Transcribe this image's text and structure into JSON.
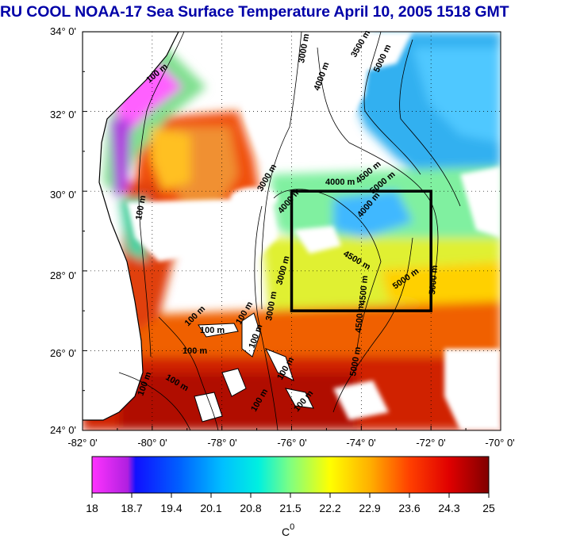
{
  "title": "RU COOL  NOAA-17 Sea Surface Temperature April 10, 2005 1518 GMT",
  "map": {
    "lat_labels": [
      "34° 0'",
      "32° 0'",
      "30° 0'",
      "28° 0'",
      "26° 0'",
      "24° 0'"
    ],
    "lon_labels": [
      "-82° 0'",
      "-80° 0'",
      "-78° 0'",
      "-76° 0'",
      "-74° 0'",
      "-72° 0'",
      "-70° 0'"
    ],
    "lat_range": [
      24,
      34
    ],
    "lon_range": [
      -82,
      -70
    ],
    "study_box": {
      "lon": [
        -76,
        -72
      ],
      "lat": [
        27,
        30
      ]
    },
    "contour_labels": [
      "3000 m",
      "3500 m",
      "5000 m",
      "4000 m",
      "100 m",
      "100 m",
      "3000 m",
      "4000 m",
      "4500 m",
      "5000 m",
      "4000 m",
      "4000 m",
      "4500 m",
      "5000 m",
      "5000 m",
      "4500 m",
      "4500 m",
      "5000 m",
      "3000 m",
      "3000 m",
      "100 m",
      "100 m",
      "100 m",
      "100 m",
      "100 m",
      "100 m",
      "100 m",
      "100 m",
      "100 m",
      "100 m"
    ]
  },
  "colorbar": {
    "tick_labels": [
      "18",
      "18.7",
      "19.4",
      "20.1",
      "20.8",
      "21.5",
      "22.2",
      "22.9",
      "23.6",
      "24.3",
      "25"
    ],
    "unit_label": "C",
    "unit_sup": "0",
    "min": 18,
    "max": 25
  },
  "colors": {
    "title": "#0000a8",
    "cloud": "#ffffff",
    "land": "#ffffff",
    "box": "#000000"
  }
}
